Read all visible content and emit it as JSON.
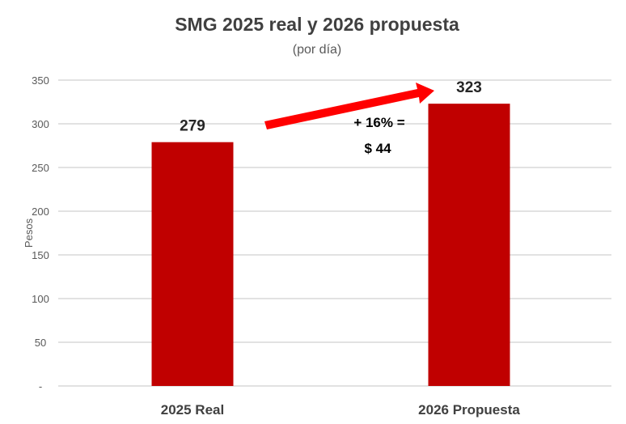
{
  "chart_data": {
    "type": "bar",
    "title": "SMG 2025 real y  2026 propuesta",
    "subtitle": "(por día)",
    "ylabel": "Pesos",
    "xlabel": "",
    "categories": [
      "2025 Real",
      "2026 Propuesta"
    ],
    "values": [
      279,
      323
    ],
    "data_labels": [
      "279",
      "323"
    ],
    "ylim": [
      0,
      350
    ],
    "yticks": [
      0,
      50,
      100,
      150,
      200,
      250,
      300,
      350
    ],
    "ytick_labels": [
      "-",
      "50",
      "100",
      "150",
      "200",
      "250",
      "300",
      "350"
    ],
    "grid": true,
    "annotation": {
      "line1": "+ 16% =",
      "line2": "$ 44",
      "arrow": "increase arrow from 2025 to 2026"
    },
    "colors": {
      "bar": "#c00000",
      "arrow": "#ff0000",
      "grid": "#d9d9d9"
    }
  }
}
